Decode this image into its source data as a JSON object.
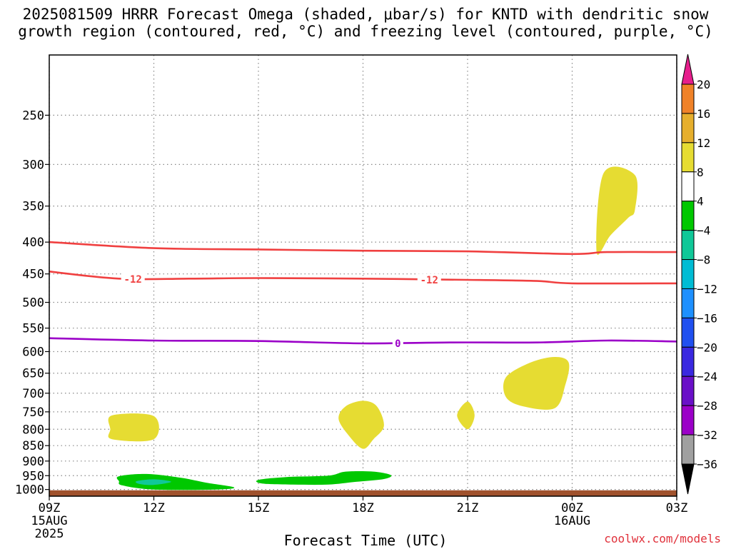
{
  "title": {
    "line1": "2025081509 HRRR Forecast Omega (shaded, μbar/s) for KNTD with dendritic snow",
    "line2": "growth region (contoured, red, °C) and freezing level (contoured, purple, °C)"
  },
  "credit": "coolwx.com/models",
  "chart_data": {
    "type": "contour",
    "xlabel": "Forecast Time (UTC)",
    "x_ticks": [
      {
        "hours": 0,
        "label": "09Z",
        "sub1": "15AUG",
        "sub2": "2025"
      },
      {
        "hours": 3,
        "label": "12Z",
        "sub1": "",
        "sub2": ""
      },
      {
        "hours": 6,
        "label": "15Z",
        "sub1": "",
        "sub2": ""
      },
      {
        "hours": 9,
        "label": "18Z",
        "sub1": "",
        "sub2": ""
      },
      {
        "hours": 12,
        "label": "21Z",
        "sub1": "",
        "sub2": ""
      },
      {
        "hours": 15,
        "label": "00Z",
        "sub1": "16AUG",
        "sub2": ""
      },
      {
        "hours": 18,
        "label": "03Z",
        "sub1": "",
        "sub2": ""
      }
    ],
    "xlim": [
      0,
      18
    ],
    "y_scale": "log",
    "ylim": [
      1025,
      200
    ],
    "y_ticks": [
      250,
      300,
      350,
      400,
      450,
      500,
      550,
      600,
      650,
      700,
      750,
      800,
      850,
      900,
      950,
      1000
    ],
    "grid": true,
    "colorbar": {
      "levels": [
        -36,
        -32,
        -28,
        -24,
        -20,
        -16,
        -12,
        -8,
        -4,
        4,
        8,
        12,
        16,
        20
      ],
      "colors": [
        "#a0a0a0",
        "#9b00c8",
        "#6a10c8",
        "#3a28e0",
        "#2050f0",
        "#1e90ff",
        "#00bcd4",
        "#10c898",
        "#00c800",
        "#ffffff",
        "#e6dc32",
        "#e6af2d",
        "#f08228",
        "#fa3c3c"
      ],
      "extend_low_color": "#000000",
      "extend_high_color": "#e61e8c"
    },
    "contours": [
      {
        "name": "dendritic upper bound",
        "color": "#f04040",
        "label": "",
        "points": [
          [
            0,
            400
          ],
          [
            3,
            409
          ],
          [
            6,
            411
          ],
          [
            9,
            413
          ],
          [
            12,
            414
          ],
          [
            15,
            418
          ],
          [
            16,
            415
          ],
          [
            18,
            415
          ]
        ]
      },
      {
        "name": "dendritic lower bound",
        "color": "#f04040",
        "label": "-12",
        "label_at": [
          2.4,
          10.9
        ],
        "points": [
          [
            0,
            446
          ],
          [
            2,
            458
          ],
          [
            4,
            458
          ],
          [
            6,
            457
          ],
          [
            9,
            458
          ],
          [
            12,
            460
          ],
          [
            14,
            462
          ],
          [
            15,
            466
          ],
          [
            18,
            466
          ]
        ]
      },
      {
        "name": "freezing level",
        "color": "#9b00c8",
        "label": "0",
        "label_at": [
          10.0
        ],
        "points": [
          [
            0,
            571
          ],
          [
            3,
            576
          ],
          [
            6,
            577
          ],
          [
            9,
            582
          ],
          [
            11.5,
            580
          ],
          [
            14,
            580
          ],
          [
            16,
            576
          ],
          [
            18,
            578
          ]
        ]
      }
    ],
    "regions": [
      {
        "value": 6,
        "color": "#e6dc32",
        "points": [
          [
            15.7,
            415
          ],
          [
            15.9,
            310
          ],
          [
            16.8,
            312
          ],
          [
            16.8,
            355
          ],
          [
            16.6,
            366
          ],
          [
            16.1,
            390
          ]
        ]
      },
      {
        "value": 6,
        "color": "#e6dc32",
        "points": [
          [
            1.8,
            760
          ],
          [
            3.0,
            762
          ],
          [
            3.0,
            830
          ],
          [
            1.8,
            830
          ],
          [
            1.75,
            800
          ]
        ]
      },
      {
        "value": 6,
        "color": "#e6dc32",
        "points": [
          [
            9.0,
            720
          ],
          [
            9.4,
            735
          ],
          [
            9.6,
            790
          ],
          [
            9.3,
            830
          ],
          [
            9.0,
            860
          ],
          [
            8.6,
            820
          ],
          [
            8.3,
            770
          ],
          [
            8.5,
            735
          ]
        ]
      },
      {
        "value": 6,
        "color": "#e6dc32",
        "points": [
          [
            12.0,
            722
          ],
          [
            12.2,
            760
          ],
          [
            12.0,
            800
          ],
          [
            11.7,
            760
          ]
        ]
      },
      {
        "value": 6,
        "color": "#e6dc32",
        "points": [
          [
            13.1,
            660
          ],
          [
            13.8,
            625
          ],
          [
            14.5,
            612
          ],
          [
            14.9,
            625
          ],
          [
            14.8,
            680
          ],
          [
            14.5,
            740
          ],
          [
            13.6,
            735
          ],
          [
            13.1,
            710
          ]
        ]
      },
      {
        "value": -6,
        "color": "#00c800",
        "points": [
          [
            2.0,
            952
          ],
          [
            2.8,
            944
          ],
          [
            3.8,
            958
          ],
          [
            4.5,
            975
          ],
          [
            5.3,
            992
          ],
          [
            4.8,
            1000
          ],
          [
            3.0,
            1000
          ],
          [
            2.1,
            985
          ],
          [
            2.0,
            970
          ]
        ]
      },
      {
        "value": -10,
        "color": "#10c898",
        "points": [
          [
            2.5,
            970
          ],
          [
            3.0,
            963
          ],
          [
            3.5,
            972
          ],
          [
            3.0,
            983
          ],
          [
            2.6,
            980
          ]
        ]
      },
      {
        "value": -6,
        "color": "#00c800",
        "points": [
          [
            6.0,
            965
          ],
          [
            6.8,
            955
          ],
          [
            8.0,
            950
          ],
          [
            8.5,
            936
          ],
          [
            9.3,
            936
          ],
          [
            9.8,
            948
          ],
          [
            9.6,
            962
          ],
          [
            8.8,
            972
          ],
          [
            8.0,
            982
          ],
          [
            7.0,
            982
          ],
          [
            6.1,
            978
          ]
        ]
      }
    ],
    "ground": {
      "color": "#a0522d",
      "from_pressure": 1003
    }
  }
}
